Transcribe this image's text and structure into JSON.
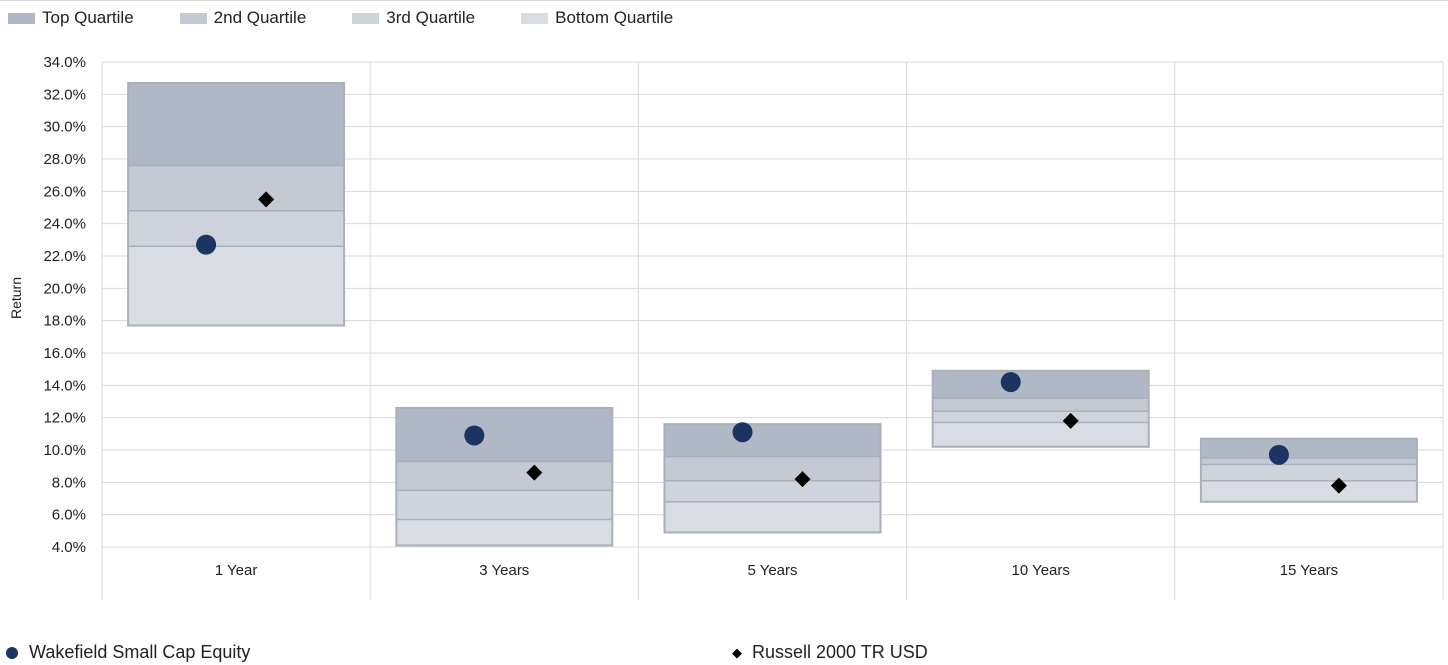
{
  "chart_data": {
    "type": "floating-bar",
    "ylabel": "Return",
    "ylim": [
      4.0,
      34.0
    ],
    "ytick_step": 2.0,
    "ytick_labels": [
      "4.0%",
      "6.0%",
      "8.0%",
      "10.0%",
      "12.0%",
      "14.0%",
      "16.0%",
      "18.0%",
      "20.0%",
      "22.0%",
      "24.0%",
      "26.0%",
      "28.0%",
      "30.0%",
      "32.0%",
      "34.0%"
    ],
    "categories": [
      "1 Year",
      "3 Years",
      "5 Years",
      "10 Years",
      "15 Years"
    ],
    "quartile_legend": [
      {
        "name": "Top Quartile",
        "color": "#b0b8c6"
      },
      {
        "name": "2nd Quartile",
        "color": "#c4cad4"
      },
      {
        "name": "3rd Quartile",
        "color": "#cfd4dc"
      },
      {
        "name": "Bottom Quartile",
        "color": "#d9dde3"
      }
    ],
    "quartile_breakpoints": [
      [
        32.7,
        27.6,
        24.8,
        22.6,
        17.7
      ],
      [
        12.6,
        9.3,
        7.5,
        5.7,
        4.1
      ],
      [
        11.6,
        9.6,
        8.1,
        6.8,
        4.9
      ],
      [
        14.9,
        13.2,
        12.4,
        11.7,
        10.2
      ],
      [
        10.7,
        9.5,
        9.1,
        8.1,
        6.8
      ]
    ],
    "series": [
      {
        "name": "Wakefield Small Cap Equity",
        "marker": "circle",
        "color": "#1c3461",
        "values": [
          22.7,
          10.9,
          11.1,
          14.2,
          9.7
        ]
      },
      {
        "name": "Russell 2000 TR USD",
        "marker": "diamond",
        "color": "#000000",
        "values": [
          25.5,
          8.6,
          8.2,
          11.8,
          7.8
        ]
      }
    ],
    "grid": true
  }
}
